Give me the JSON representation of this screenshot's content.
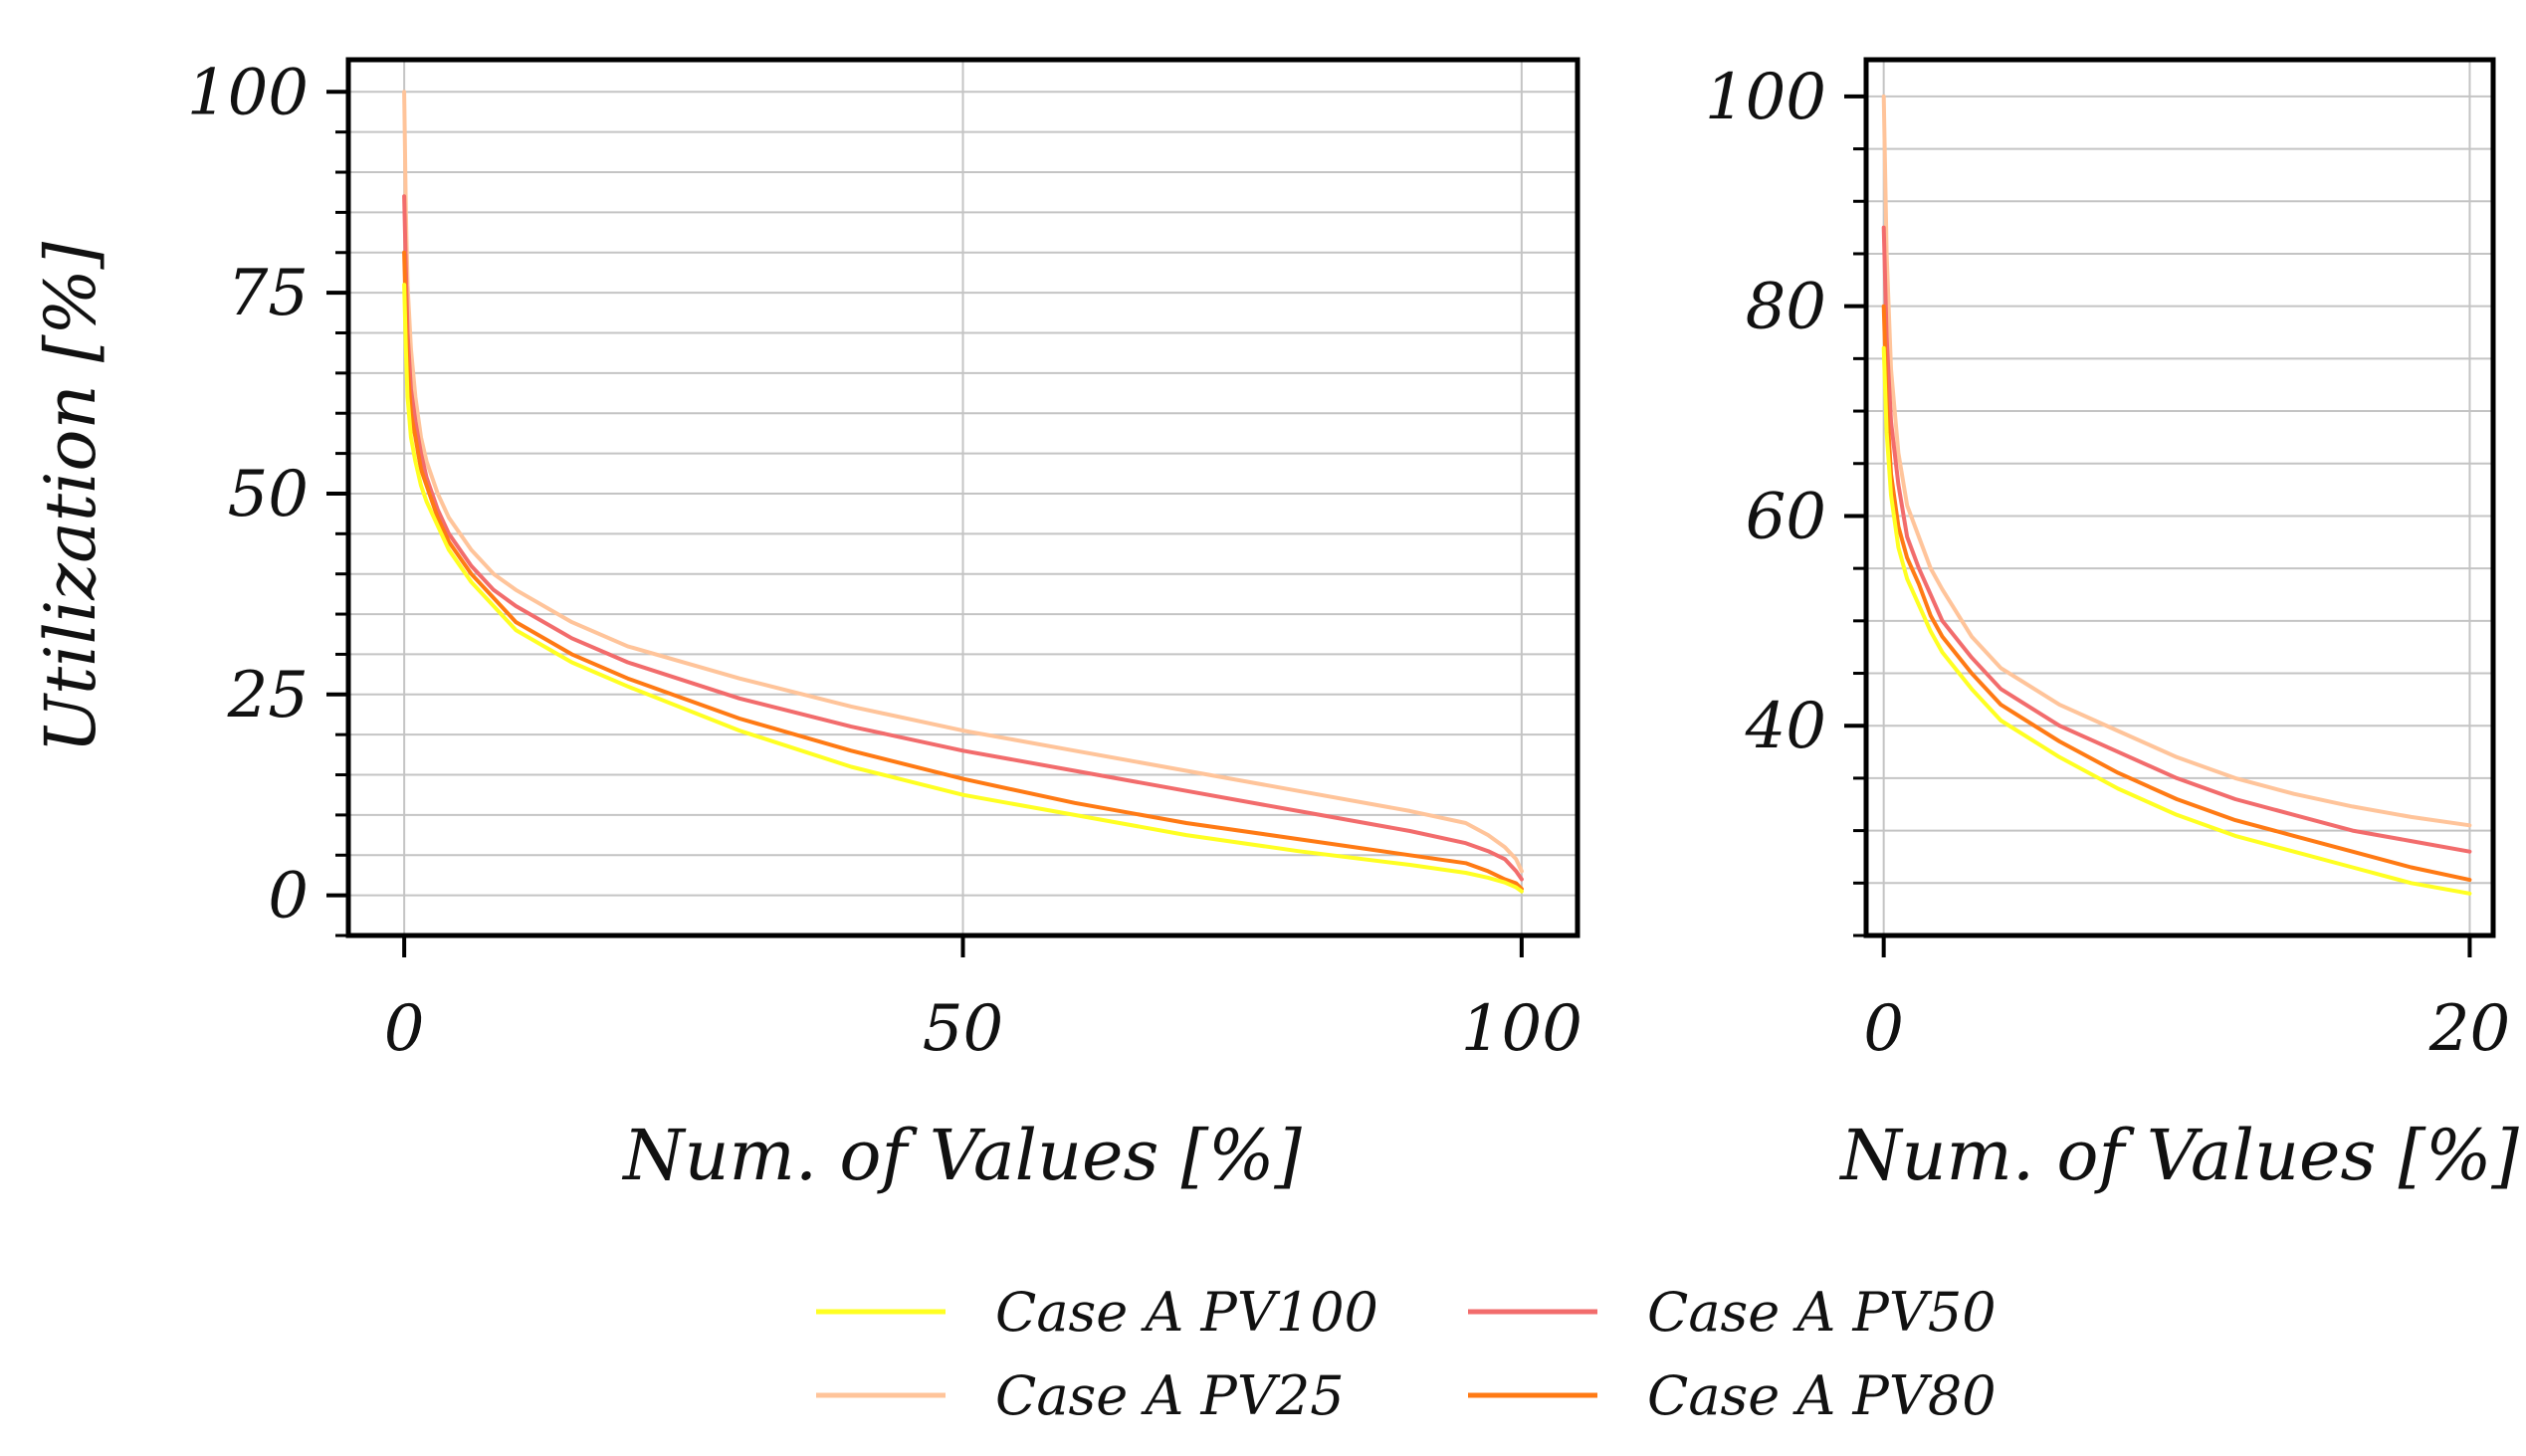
{
  "colors": {
    "pv100": "#ffff22",
    "pv25": "#ffc49a",
    "pv50": "#f26c6c",
    "pv80": "#ff7a14",
    "grid": "#c4c4c4",
    "axis": "#000000"
  },
  "chart_data": [
    {
      "type": "line",
      "title": "",
      "xlabel": "Num. of Values [%]",
      "ylabel": "Utilization [%]",
      "xlim": [
        -5,
        105
      ],
      "ylim": [
        -5,
        104
      ],
      "xticks": [
        0,
        50,
        100
      ],
      "xtick_labels": [
        "0",
        "50",
        "100"
      ],
      "yticks": [
        0,
        25,
        50,
        75,
        100
      ],
      "ytick_labels": [
        "0",
        "25",
        "50",
        "75",
        "100"
      ],
      "minor_y_step": 5,
      "grid": true,
      "series": [
        {
          "name": "Case A PV25",
          "color_key": "pv25",
          "x": [
            0,
            0.15,
            0.3,
            0.6,
            1,
            1.5,
            2,
            3,
            4,
            6,
            8,
            10,
            15,
            20,
            30,
            40,
            50,
            60,
            70,
            80,
            90,
            95,
            97,
            98.5,
            99.5,
            100
          ],
          "y": [
            100,
            85,
            76,
            68,
            62,
            57,
            54,
            50,
            47,
            43,
            40,
            38,
            34,
            31,
            27,
            23.5,
            20.5,
            18,
            15.5,
            13,
            10.5,
            9,
            7.5,
            6,
            4.5,
            3
          ]
        },
        {
          "name": "Case A PV50",
          "color_key": "pv50",
          "x": [
            0,
            0.15,
            0.3,
            0.6,
            1,
            1.5,
            2,
            3,
            4,
            6,
            8,
            10,
            15,
            20,
            30,
            40,
            50,
            60,
            70,
            80,
            90,
            95,
            97,
            98.5,
            99.5,
            100
          ],
          "y": [
            87,
            78,
            70,
            63,
            59,
            55,
            52,
            48,
            45,
            41,
            38,
            36,
            32,
            29,
            24.5,
            21,
            18,
            15.5,
            13,
            10.5,
            8,
            6.5,
            5.5,
            4.5,
            3,
            2
          ]
        },
        {
          "name": "Case A PV80",
          "color_key": "pv80",
          "x": [
            0,
            0.15,
            0.3,
            0.6,
            1,
            1.5,
            2,
            3,
            4,
            6,
            8,
            10,
            15,
            20,
            30,
            40,
            50,
            60,
            70,
            80,
            90,
            95,
            97,
            98.5,
            99.5,
            100
          ],
          "y": [
            80,
            72,
            66,
            60,
            57,
            53,
            51,
            47,
            44,
            40,
            37,
            34,
            30,
            27,
            22,
            18,
            14.5,
            11.5,
            9,
            7,
            5,
            4,
            3,
            2,
            1.5,
            0.8
          ]
        },
        {
          "name": "Case A PV100",
          "color_key": "pv100",
          "x": [
            0,
            0.15,
            0.3,
            0.6,
            1,
            1.5,
            2,
            3,
            4,
            6,
            8,
            10,
            15,
            20,
            30,
            40,
            50,
            60,
            70,
            80,
            90,
            95,
            97,
            98.5,
            99.5,
            100
          ],
          "y": [
            76,
            68,
            62,
            57,
            54,
            51,
            49,
            46,
            43,
            39,
            36,
            33,
            29,
            26,
            20.5,
            16,
            12.5,
            10,
            7.5,
            5.5,
            3.8,
            2.8,
            2.2,
            1.6,
            1,
            0.5
          ]
        }
      ]
    },
    {
      "type": "line",
      "title": "",
      "xlabel": "Num. of Values [%]",
      "ylabel": "",
      "xlim": [
        -0.6,
        20.8
      ],
      "ylim": [
        20,
        103.5
      ],
      "xticks": [
        0,
        20
      ],
      "xtick_labels": [
        "0",
        "20"
      ],
      "yticks": [
        40,
        60,
        80,
        100
      ],
      "ytick_labels": [
        "40",
        "60",
        "80",
        "100"
      ],
      "minor_y_step": 5,
      "grid": true,
      "series": [
        {
          "name": "Case A PV25",
          "color_key": "pv25",
          "x": [
            0,
            0.1,
            0.25,
            0.5,
            0.8,
            1.2,
            1.6,
            2,
            3,
            4,
            6,
            8,
            10,
            12,
            14,
            16,
            18,
            20
          ],
          "y": [
            100,
            85,
            74,
            66,
            61,
            58,
            55,
            53,
            48.5,
            45.5,
            42,
            39.5,
            37,
            35,
            33.5,
            32.3,
            31.3,
            30.5
          ]
        },
        {
          "name": "Case A PV50",
          "color_key": "pv50",
          "x": [
            0,
            0.1,
            0.25,
            0.5,
            0.8,
            1.2,
            1.6,
            2,
            3,
            4,
            6,
            8,
            10,
            12,
            14,
            16,
            18,
            20
          ],
          "y": [
            87.5,
            77,
            69,
            63,
            58,
            55,
            52.5,
            50,
            46.5,
            43.5,
            40,
            37.5,
            35,
            33,
            31.5,
            30,
            29,
            28
          ]
        },
        {
          "name": "Case A PV80",
          "color_key": "pv80",
          "x": [
            0,
            0.1,
            0.25,
            0.5,
            0.8,
            1.2,
            1.6,
            2,
            3,
            4,
            6,
            8,
            10,
            12,
            14,
            16,
            18,
            20
          ],
          "y": [
            80,
            71,
            64,
            59,
            56,
            53.5,
            50.5,
            48.5,
            45,
            42,
            38.5,
            35.5,
            33,
            31,
            29.5,
            28,
            26.5,
            25.3
          ]
        },
        {
          "name": "Case A PV100",
          "color_key": "pv100",
          "x": [
            0,
            0.1,
            0.25,
            0.5,
            0.8,
            1.2,
            1.6,
            2,
            3,
            4,
            6,
            8,
            10,
            12,
            14,
            16,
            18,
            20
          ],
          "y": [
            76,
            68,
            62,
            57,
            54,
            51.5,
            49,
            47,
            43.5,
            40.5,
            37,
            34,
            31.5,
            29.5,
            28,
            26.5,
            25,
            24
          ]
        }
      ]
    }
  ],
  "legend": {
    "placement": "bottom-center",
    "items": [
      {
        "label": "Case A PV100",
        "color_key": "pv100"
      },
      {
        "label": "Case A PV50",
        "color_key": "pv50"
      },
      {
        "label": "Case A PV25",
        "color_key": "pv25"
      },
      {
        "label": "Case A PV80",
        "color_key": "pv80"
      }
    ]
  }
}
